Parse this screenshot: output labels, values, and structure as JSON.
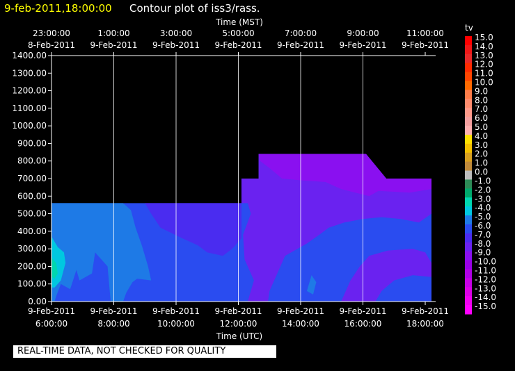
{
  "header": {
    "datetime": "9-feb-2011,18:00:00",
    "title": "Contour plot of iss3/rass."
  },
  "banner": "REAL-TIME DATA, NOT CHECKED FOR QUALITY",
  "colors": {
    "background": "#000000",
    "datetime_text": "#ffff00",
    "gridlines": "#ffffff"
  },
  "chart_data": {
    "type": "heatmap",
    "title": "Contour plot of iss3/rass.",
    "xlabel_top": "Time (MST)",
    "xlabel_bottom": "Time (UTC)",
    "ylabel": "",
    "xlim_hours": [
      6.0,
      18.0
    ],
    "ylim": [
      0,
      1400
    ],
    "grid": true,
    "y_ticks": [
      "0.00",
      "100.00",
      "200.00",
      "300.00",
      "400.00",
      "500.00",
      "600.00",
      "700.00",
      "800.00",
      "900.00",
      "1000.00",
      "1100.00",
      "1200.00",
      "1300.00",
      "1400.00"
    ],
    "top_ticks": [
      {
        "hour": 6,
        "line1": "23:00:00",
        "line2": "8-Feb-2011"
      },
      {
        "hour": 8,
        "line1": "1:00:00",
        "line2": "9-Feb-2011"
      },
      {
        "hour": 10,
        "line1": "3:00:00",
        "line2": "9-Feb-2011"
      },
      {
        "hour": 12,
        "line1": "5:00:00",
        "line2": "9-Feb-2011"
      },
      {
        "hour": 14,
        "line1": "7:00:00",
        "line2": "9-Feb-2011"
      },
      {
        "hour": 16,
        "line1": "9:00:00",
        "line2": "9-Feb-2011"
      },
      {
        "hour": 18,
        "line1": "11:00:00",
        "line2": "9-Feb-2011"
      }
    ],
    "bottom_ticks": [
      {
        "hour": 6,
        "line1": "9-Feb-2011",
        "line2": "6:00:00"
      },
      {
        "hour": 8,
        "line1": "9-Feb-2011",
        "line2": "8:00:00"
      },
      {
        "hour": 10,
        "line1": "9-Feb-2011",
        "line2": "10:00:00"
      },
      {
        "hour": 12,
        "line1": "9-Feb-2011",
        "line2": "12:00:00"
      },
      {
        "hour": 14,
        "line1": "9-Feb-2011",
        "line2": "14:00:00"
      },
      {
        "hour": 16,
        "line1": "9-Feb-2011",
        "line2": "16:00:00"
      },
      {
        "hour": 18,
        "line1": "9-Feb-2011",
        "line2": "18:00:00"
      }
    ],
    "colorbar": {
      "label": "tv",
      "levels": [
        {
          "value": "15.0",
          "color": "#ff0000"
        },
        {
          "value": "14.0",
          "color": "#f01818"
        },
        {
          "value": "13.0",
          "color": "#e82a2a"
        },
        {
          "value": "12.0",
          "color": "#ff2a00"
        },
        {
          "value": "11.0",
          "color": "#ff4500"
        },
        {
          "value": "10.0",
          "color": "#ff6a00"
        },
        {
          "value": "9.0",
          "color": "#ff7d4a"
        },
        {
          "value": "8.0",
          "color": "#ff8c6e"
        },
        {
          "value": "7.0",
          "color": "#ff9a8a"
        },
        {
          "value": "6.0",
          "color": "#f5a0a0"
        },
        {
          "value": "5.0",
          "color": "#ffb0b0"
        },
        {
          "value": "4.0",
          "color": "#ffe000"
        },
        {
          "value": "3.0",
          "color": "#f5c000"
        },
        {
          "value": "2.0",
          "color": "#d8a020"
        },
        {
          "value": "1.0",
          "color": "#c08a3a"
        },
        {
          "value": "0.0",
          "color": "#bdbdbd"
        },
        {
          "value": "-1.0",
          "color": "#2e8b57"
        },
        {
          "value": "-2.0",
          "color": "#00a86b"
        },
        {
          "value": "-3.0",
          "color": "#00d7b0"
        },
        {
          "value": "-4.0",
          "color": "#00c8e0"
        },
        {
          "value": "-5.0",
          "color": "#1e7ae6"
        },
        {
          "value": "-6.0",
          "color": "#2a4cf0"
        },
        {
          "value": "-7.0",
          "color": "#4a2cf0"
        },
        {
          "value": "-8.0",
          "color": "#6a22f0"
        },
        {
          "value": "-9.0",
          "color": "#8a10f0"
        },
        {
          "value": "-10.0",
          "color": "#9a00e6"
        },
        {
          "value": "-11.0",
          "color": "#b000e6"
        },
        {
          "value": "-12.0",
          "color": "#c800e6"
        },
        {
          "value": "-13.0",
          "color": "#dc00e6"
        },
        {
          "value": "-14.0",
          "color": "#f000f0"
        },
        {
          "value": "-15.0",
          "color": "#ff00ff"
        }
      ]
    },
    "regions": [
      {
        "name": "data-envelope",
        "color": "#2a4cf0",
        "points": [
          [
            6.0,
            0
          ],
          [
            18.5,
            0
          ],
          [
            18.5,
            700
          ],
          [
            16.75,
            700
          ],
          [
            16.1,
            840
          ],
          [
            12.65,
            840
          ],
          [
            12.65,
            700
          ],
          [
            12.1,
            700
          ],
          [
            12.1,
            560
          ],
          [
            6.0,
            560
          ]
        ]
      },
      {
        "name": "light-blue-area",
        "color": "#1e7ae6",
        "points": [
          [
            6.0,
            0
          ],
          [
            6.1,
            0
          ],
          [
            6.15,
            30
          ],
          [
            6.3,
            100
          ],
          [
            6.6,
            70
          ],
          [
            6.8,
            180
          ],
          [
            6.9,
            120
          ],
          [
            7.3,
            160
          ],
          [
            7.4,
            280
          ],
          [
            7.8,
            200
          ],
          [
            7.9,
            0
          ],
          [
            8.3,
            0
          ],
          [
            8.4,
            50
          ],
          [
            8.6,
            110
          ],
          [
            8.75,
            130
          ],
          [
            9.2,
            120
          ],
          [
            9.1,
            200
          ],
          [
            8.9,
            320
          ],
          [
            8.7,
            420
          ],
          [
            8.55,
            520
          ],
          [
            8.3,
            560
          ],
          [
            6.0,
            560
          ]
        ]
      },
      {
        "name": "cyan-area",
        "color": "#00c8e0",
        "points": [
          [
            6.0,
            370
          ],
          [
            6.2,
            310
          ],
          [
            6.4,
            280
          ],
          [
            6.45,
            220
          ],
          [
            6.3,
            120
          ],
          [
            6.1,
            80
          ],
          [
            6.0,
            80
          ]
        ]
      },
      {
        "name": "teal-spot",
        "color": "#00d7b0",
        "points": [
          [
            6.0,
            250
          ],
          [
            6.15,
            220
          ],
          [
            6.2,
            160
          ],
          [
            6.1,
            130
          ],
          [
            6.0,
            140
          ]
        ]
      },
      {
        "name": "violet-upper",
        "color": "#6a22f0",
        "points": [
          [
            12.65,
            840
          ],
          [
            16.1,
            840
          ],
          [
            16.75,
            700
          ],
          [
            18.5,
            700
          ],
          [
            18.5,
            500
          ],
          [
            17.8,
            450
          ],
          [
            17.2,
            470
          ],
          [
            16.6,
            480
          ],
          [
            16.0,
            470
          ],
          [
            15.4,
            450
          ],
          [
            14.9,
            420
          ],
          [
            14.6,
            380
          ],
          [
            14.2,
            330
          ],
          [
            13.5,
            260
          ],
          [
            13.2,
            140
          ],
          [
            13.0,
            60
          ],
          [
            12.95,
            0
          ],
          [
            12.3,
            0
          ],
          [
            12.5,
            120
          ],
          [
            12.2,
            240
          ],
          [
            12.15,
            380
          ],
          [
            12.4,
            500
          ],
          [
            12.3,
            560
          ],
          [
            12.1,
            560
          ],
          [
            12.1,
            700
          ],
          [
            12.65,
            700
          ]
        ]
      },
      {
        "name": "violet-mid-left",
        "color": "#4a2cf0",
        "points": [
          [
            9.0,
            560
          ],
          [
            9.2,
            500
          ],
          [
            9.5,
            420
          ],
          [
            10.2,
            360
          ],
          [
            10.7,
            320
          ],
          [
            11.0,
            280
          ],
          [
            11.5,
            260
          ],
          [
            11.8,
            300
          ],
          [
            12.1,
            360
          ],
          [
            12.1,
            560
          ]
        ]
      },
      {
        "name": "purple-top",
        "color": "#8a10f0",
        "points": [
          [
            12.65,
            840
          ],
          [
            16.1,
            840
          ],
          [
            16.75,
            700
          ],
          [
            18.5,
            700
          ],
          [
            18.5,
            640
          ],
          [
            17.5,
            620
          ],
          [
            16.5,
            630
          ],
          [
            16.2,
            600
          ],
          [
            15.3,
            640
          ],
          [
            14.8,
            680
          ],
          [
            14.0,
            690
          ],
          [
            13.4,
            700
          ],
          [
            13.0,
            760
          ],
          [
            12.7,
            800
          ]
        ]
      },
      {
        "name": "violet-lower-right",
        "color": "#6a22f0",
        "points": [
          [
            15.3,
            0
          ],
          [
            15.6,
            120
          ],
          [
            15.9,
            200
          ],
          [
            16.2,
            260
          ],
          [
            16.8,
            290
          ],
          [
            17.6,
            300
          ],
          [
            18.0,
            280
          ],
          [
            18.4,
            220
          ],
          [
            18.5,
            140
          ],
          [
            18.5,
            0
          ]
        ]
      },
      {
        "name": "blue-lower-right",
        "color": "#2a4cf0",
        "points": [
          [
            16.4,
            0
          ],
          [
            16.6,
            60
          ],
          [
            17.0,
            120
          ],
          [
            17.6,
            150
          ],
          [
            18.2,
            140
          ],
          [
            18.5,
            120
          ],
          [
            18.5,
            0
          ]
        ]
      },
      {
        "name": "blue-spot-mid",
        "color": "#1e7ae6",
        "points": [
          [
            14.2,
            60
          ],
          [
            14.35,
            150
          ],
          [
            14.5,
            110
          ],
          [
            14.4,
            40
          ]
        ]
      }
    ]
  }
}
